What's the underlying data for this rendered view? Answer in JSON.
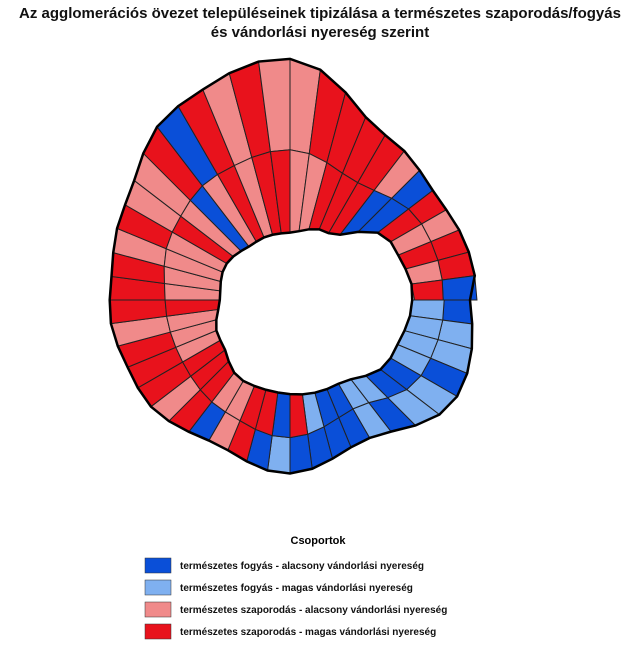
{
  "title": "Az agglomerációs övezet településeinek tipizálása a természetes szaporodás/fogyás és vándorlási nyereség szerint",
  "legend": {
    "title": "Csoportok",
    "items": [
      {
        "label": "természetes fogyás - alacsony vándorlási nyereség",
        "color": "#0a4fd8"
      },
      {
        "label": "természetes fogyás - magas vándorlási nyereség",
        "color": "#7fb0f0"
      },
      {
        "label": "természetes szaporodás - alacsony vándorlási nyereség",
        "color": "#f08a8a"
      },
      {
        "label": "természetes szaporodás - magas vándorlási nyereség",
        "color": "#e8121c"
      }
    ]
  }
}
